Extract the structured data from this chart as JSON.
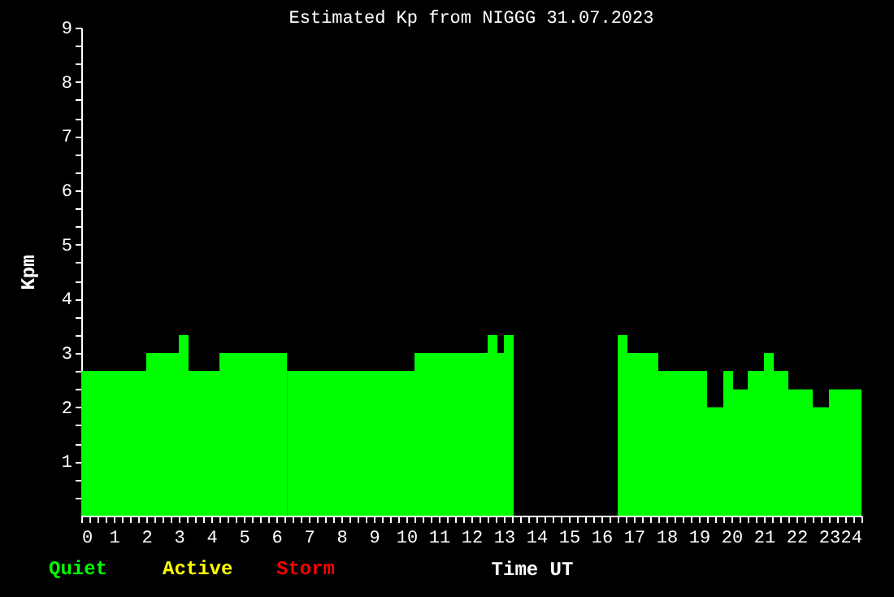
{
  "chart_data": {
    "type": "histogram",
    "title": "Estimated Kp from NIGGG 31.07.2023",
    "xlabel": "Time UT",
    "ylabel": "Kpm",
    "annotations": [
      "Quiet",
      "Active",
      "Storm"
    ],
    "bins": [
      0,
      2,
      3,
      3.3,
      4.25,
      6.33,
      10.25,
      12.5,
      12.8,
      13,
      13.3,
      16.5,
      16.8,
      17.75,
      19.25,
      19.75,
      20.05,
      20.5,
      21,
      21.3,
      21.75,
      22.5,
      23,
      24
    ],
    "values": [
      2.67,
      3,
      3.33,
      2.67,
      3,
      2.67,
      3,
      3.33,
      3,
      3.33,
      null,
      3.33,
      3,
      2.67,
      2,
      2.67,
      2.33,
      2.67,
      3,
      2.67,
      2.33,
      2,
      2.33
    ],
    "color": "#00ff00",
    "xlim": [
      0,
      24
    ],
    "ylim": [
      0,
      9
    ],
    "xticks": [
      0,
      {
        "value": 0.25,
        "label": null
      },
      {
        "value": 0.5,
        "label": null
      },
      {
        "value": 0.75,
        "label": null
      },
      1,
      {
        "value": 1.25,
        "label": null
      },
      {
        "value": 1.5,
        "label": null
      },
      {
        "value": 1.75,
        "label": null
      },
      2,
      {
        "value": 2.25,
        "label": null
      },
      {
        "value": 2.5,
        "label": null
      },
      {
        "value": 2.75,
        "label": null
      },
      3,
      {
        "value": 3.25,
        "label": null
      },
      {
        "value": 3.5,
        "label": null
      },
      {
        "value": 3.75,
        "label": null
      },
      4,
      {
        "value": 4.25,
        "label": null
      },
      {
        "value": 4.5,
        "label": null
      },
      {
        "value": 4.75,
        "label": null
      },
      5,
      {
        "value": 5.25,
        "label": null
      },
      {
        "value": 5.5,
        "label": null
      },
      {
        "value": 5.75,
        "label": null
      },
      6,
      {
        "value": 6.25,
        "label": null
      },
      {
        "value": 6.5,
        "label": null
      },
      {
        "value": 6.75,
        "label": null
      },
      7,
      {
        "value": 7.25,
        "label": null
      },
      {
        "value": 7.5,
        "label": null
      },
      {
        "value": 7.75,
        "label": null
      },
      8,
      {
        "value": 8.25,
        "label": null
      },
      {
        "value": 8.5,
        "label": null
      },
      {
        "value": 8.75,
        "label": null
      },
      9,
      {
        "value": 9.25,
        "label": null
      },
      {
        "value": 9.5,
        "label": null
      },
      {
        "value": 9.75,
        "label": null
      },
      10,
      {
        "value": 10.25,
        "label": null
      },
      {
        "value": 10.5,
        "label": null
      },
      {
        "value": 10.75,
        "label": null
      },
      11,
      {
        "value": 11.25,
        "label": null
      },
      {
        "value": 11.5,
        "label": null
      },
      {
        "value": 11.75,
        "label": null
      },
      12,
      {
        "value": 12.25,
        "label": null
      },
      {
        "value": 12.5,
        "label": null
      },
      {
        "value": 12.75,
        "label": null
      },
      13,
      {
        "value": 13.25,
        "label": null
      },
      {
        "value": 13.5,
        "label": null
      },
      {
        "value": 13.75,
        "label": null
      },
      14,
      {
        "value": 14.25,
        "label": null
      },
      {
        "value": 14.5,
        "label": null
      },
      {
        "value": 14.75,
        "label": null
      },
      15,
      {
        "value": 15.25,
        "label": null
      },
      {
        "value": 15.5,
        "label": null
      },
      {
        "value": 15.75,
        "label": null
      },
      16,
      {
        "value": 16.25,
        "label": null
      },
      {
        "value": 16.5,
        "label": null
      },
      {
        "value": 16.75,
        "label": null
      },
      17,
      {
        "value": 17.25,
        "label": null
      },
      {
        "value": 17.5,
        "label": null
      },
      {
        "value": 17.75,
        "label": null
      },
      18,
      {
        "value": 18.25,
        "label": null
      },
      {
        "value": 18.5,
        "label": null
      },
      {
        "value": 18.75,
        "label": null
      },
      19,
      {
        "value": 19.25,
        "label": null
      },
      {
        "value": 19.5,
        "label": null
      },
      {
        "value": 19.75,
        "label": null
      },
      20,
      {
        "value": 20.25,
        "label": null
      },
      {
        "value": 20.5,
        "label": null
      },
      {
        "value": 20.75,
        "label": null
      },
      21,
      {
        "value": 21.25,
        "label": null
      },
      {
        "value": 21.5,
        "label": null
      },
      {
        "value": 21.75,
        "label": null
      },
      22,
      {
        "value": 22.25,
        "label": null
      },
      {
        "value": 22.5,
        "label": null
      },
      {
        "value": 22.75,
        "label": null
      },
      23,
      {
        "value": 23.25,
        "label": null
      },
      {
        "value": 23.5,
        "label": null
      },
      {
        "value": 23.75,
        "label": null
      },
      24
    ],
    "yticks": [
      {
        "value": 0.33,
        "label": null
      },
      {
        "value": 0.67,
        "label": null
      },
      1,
      {
        "value": 1.33,
        "label": null
      },
      {
        "value": 1.67,
        "label": null
      },
      2,
      {
        "value": 2.33,
        "label": null
      },
      {
        "value": 2.67,
        "label": null
      },
      3,
      {
        "value": 3.33,
        "label": null
      },
      {
        "value": 3.67,
        "label": null
      },
      4,
      {
        "value": 4.33,
        "label": null
      },
      {
        "value": 4.67,
        "label": null
      },
      5,
      {
        "value": 5.33,
        "label": null
      },
      {
        "value": 5.67,
        "label": null
      },
      6,
      {
        "value": 6.33,
        "label": null
      },
      {
        "value": 6.67,
        "label": null
      },
      7,
      {
        "value": 7.33,
        "label": null
      },
      {
        "value": 7.67,
        "label": null
      },
      8,
      {
        "value": 8.33,
        "label": null
      },
      {
        "value": 8.67,
        "label": null
      },
      9
    ]
  }
}
